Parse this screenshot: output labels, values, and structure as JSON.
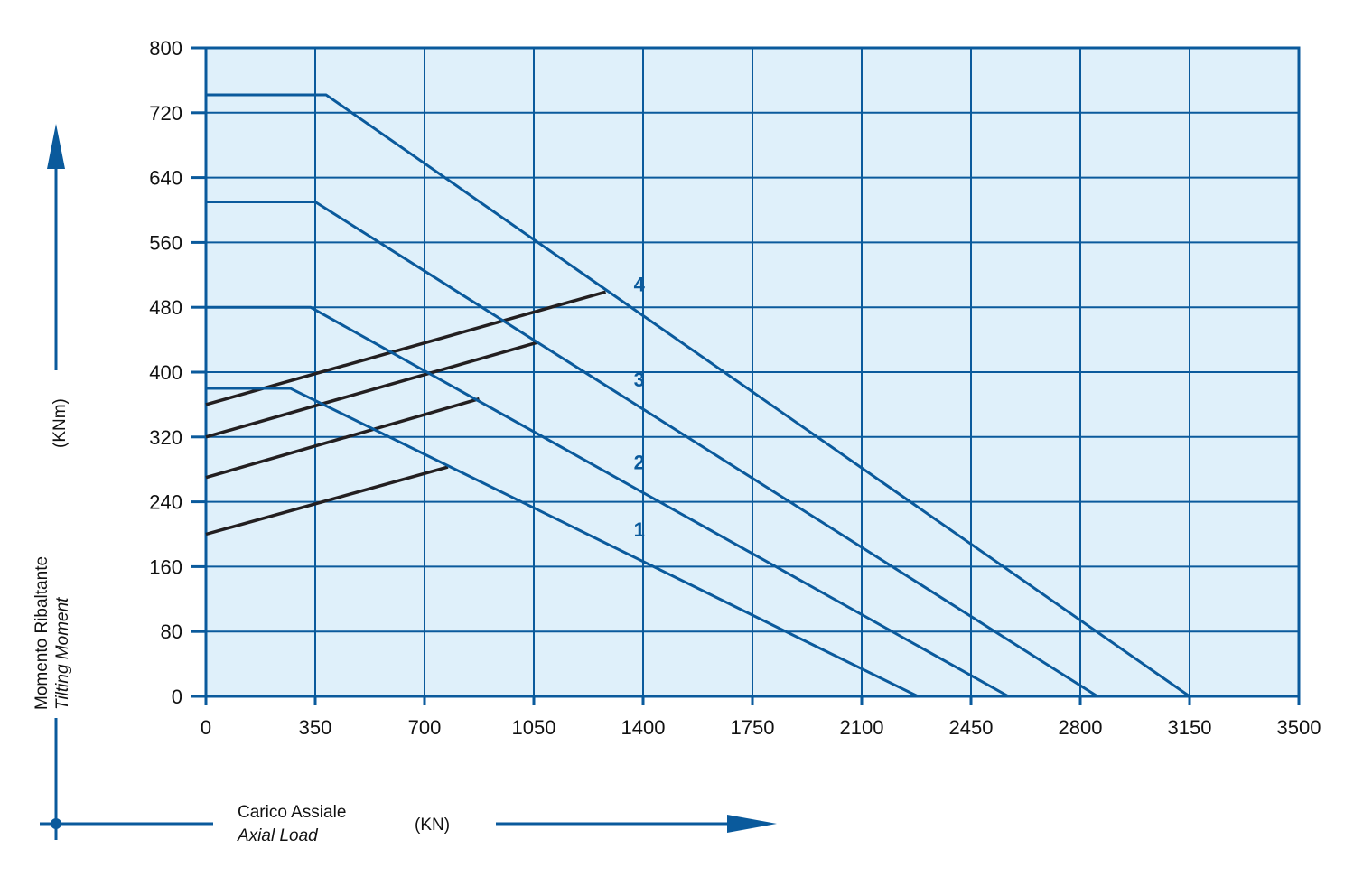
{
  "colors": {
    "plot_background": "#dff0fa",
    "grid": "#0a5a9c",
    "capacity_curve": "#0a5a9c",
    "bolt_curve": "#231f20",
    "arrow": "#0a5a9c"
  },
  "chart_data": {
    "type": "line",
    "title": "",
    "xlabel": {
      "line1": "Carico Assiale",
      "line2": "Axial Load",
      "unit": "(KN)"
    },
    "ylabel": {
      "line1": "Momento Ribaltante",
      "line2": "Tilting Moment",
      "unit": "(KNm)"
    },
    "xlim": [
      0,
      3500
    ],
    "ylim": [
      0,
      800
    ],
    "x_ticks": [
      "0",
      "350",
      "700",
      "1050",
      "1400",
      "1750",
      "2100",
      "2450",
      "2800",
      "3150",
      "3500"
    ],
    "y_ticks": [
      "0",
      "80",
      "160",
      "240",
      "320",
      "400",
      "480",
      "560",
      "640",
      "720",
      "800"
    ],
    "grid": true,
    "series": [
      {
        "label": "1",
        "points": [
          [
            0,
            380
          ],
          [
            270,
            380
          ],
          [
            2280,
            0
          ]
        ]
      },
      {
        "label": "2",
        "points": [
          [
            0,
            480
          ],
          [
            335,
            480
          ],
          [
            2570,
            0
          ]
        ]
      },
      {
        "label": "3",
        "points": [
          [
            0,
            610
          ],
          [
            350,
            610
          ],
          [
            2855,
            0
          ]
        ]
      },
      {
        "label": "4",
        "points": [
          [
            0,
            742
          ],
          [
            385,
            742
          ],
          [
            3150,
            0
          ]
        ]
      }
    ],
    "bolt_lines": [
      {
        "points": [
          [
            0,
            200
          ],
          [
            775,
            283
          ]
        ]
      },
      {
        "points": [
          [
            0,
            270
          ],
          [
            875,
            367
          ]
        ]
      },
      {
        "points": [
          [
            0,
            320
          ],
          [
            1065,
            437
          ]
        ]
      },
      {
        "points": [
          [
            0,
            360
          ],
          [
            1280,
            499
          ]
        ]
      }
    ],
    "curve_labels": [
      {
        "text": "1",
        "x": 1370,
        "y": 197
      },
      {
        "text": "2",
        "x": 1370,
        "y": 280
      },
      {
        "text": "3",
        "x": 1370,
        "y": 382
      },
      {
        "text": "4",
        "x": 1370,
        "y": 500
      }
    ]
  }
}
